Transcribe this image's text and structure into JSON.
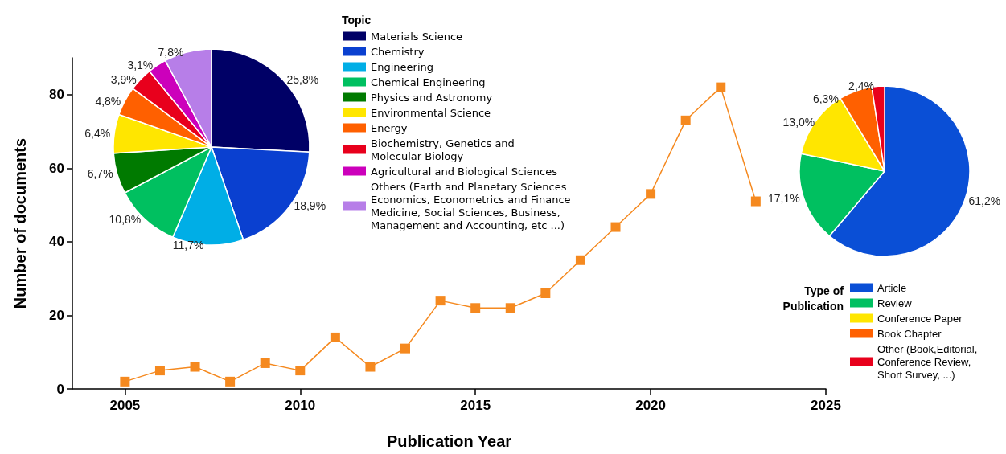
{
  "chart_data": [
    {
      "type": "line",
      "xlabel": "Publication Year",
      "ylabel": "Number of documents",
      "x": [
        2005,
        2006,
        2007,
        2008,
        2009,
        2010,
        2011,
        2012,
        2013,
        2014,
        2015,
        2016,
        2017,
        2018,
        2019,
        2020,
        2021,
        2022,
        2023
      ],
      "values": [
        2,
        5,
        6,
        2,
        7,
        5,
        14,
        6,
        11,
        24,
        22,
        22,
        26,
        35,
        44,
        53,
        73,
        82,
        51
      ],
      "color": "#f5891f",
      "marker": "square",
      "xlim": [
        2003.5,
        2025
      ],
      "xticks": [
        2005,
        2010,
        2015,
        2020,
        2025
      ],
      "ylim": [
        0,
        90
      ],
      "yticks": [
        0,
        20,
        40,
        60,
        80
      ]
    },
    {
      "type": "pie",
      "legend_title": "Topic",
      "legend": "right",
      "categories": [
        "Materials Science",
        "Chemistry",
        "Engineering",
        "Chemical Engineering",
        "Physics and Astronomy",
        "Environmental Science",
        "Energy",
        "Biochemistry, Genetics and\nMolecular Biology",
        "Agricultural and Biological Sciences",
        "Others (Earth and Planetary Sciences\nEconomics, Econometrics and Finance\nMedicine, Social Sciences, Business,\nManagement and Accounting, etc ...)"
      ],
      "values": [
        25.8,
        18.9,
        11.7,
        10.8,
        6.7,
        6.4,
        4.8,
        3.9,
        3.1,
        7.8
      ],
      "value_labels": [
        "25,8%",
        "18,9%",
        "11,7%",
        "10,8%",
        "6,7%",
        "6,4%",
        "4,8%",
        "3,9%",
        "3,1%",
        "7,8%"
      ],
      "colors": [
        "#000066",
        "#0a40d0",
        "#00aee6",
        "#00c060",
        "#007a00",
        "#ffe600",
        "#ff6000",
        "#e8001c",
        "#cc00bb",
        "#b77ee8"
      ]
    },
    {
      "type": "pie",
      "legend_title": "Type of\nPublication",
      "legend": "bottom",
      "categories": [
        "Article",
        "Review",
        "Conference Paper",
        "Book Chapter",
        "Other (Book,Editorial,\nConference Review,\nShort Survey, ...)"
      ],
      "values": [
        61.2,
        17.1,
        13.0,
        6.3,
        2.4
      ],
      "value_labels": [
        "61,2%",
        "17,1%",
        "13,0%",
        "6,3%",
        "2,4%"
      ],
      "colors": [
        "#0a4fd6",
        "#00c060",
        "#ffe600",
        "#ff6000",
        "#e8001c"
      ]
    }
  ]
}
